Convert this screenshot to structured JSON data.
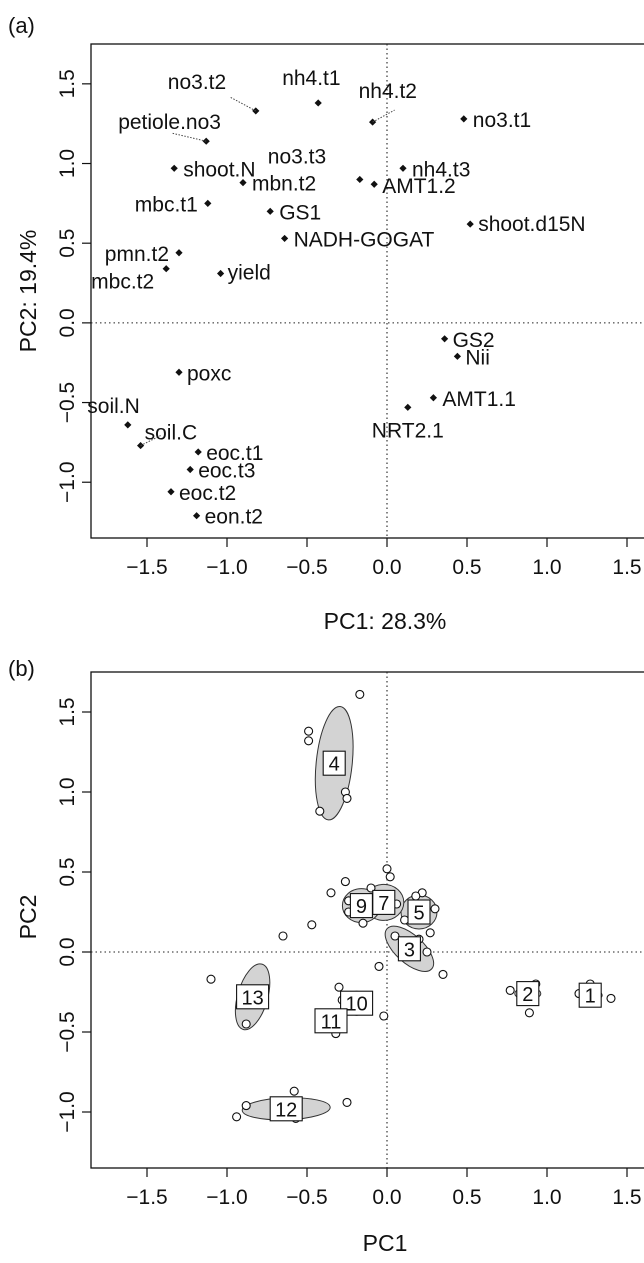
{
  "panels": [
    {
      "tag": "(a)",
      "xlabel": "PC1: 28.3%",
      "ylabel": "PC2: 19.4%"
    },
    {
      "tag": "(b)",
      "xlabel": "PC1",
      "ylabel": "PC2"
    }
  ],
  "chart_data": [
    {
      "type": "scatter",
      "title": "",
      "xlabel": "PC1: 28.3%",
      "ylabel": "PC2: 19.4%",
      "xlim": [
        -1.85,
        1.65
      ],
      "ylim": [
        -1.35,
        1.75
      ],
      "xticks": [
        -1.5,
        -1.0,
        -0.5,
        0.0,
        0.5,
        1.0,
        1.5
      ],
      "yticks": [
        -1.0,
        -0.5,
        0.0,
        0.5,
        1.0,
        1.5
      ],
      "xtick_labels": [
        "−1.5",
        "−1.0",
        "−0.5",
        "0.0",
        "0.5",
        "1.0",
        "1.5"
      ],
      "ytick_labels": [
        "−1.0",
        "−0.5",
        "0.0",
        "0.5",
        "1.0",
        "1.5"
      ],
      "reference_lines": {
        "x": 0,
        "y": 0,
        "style": "dotted"
      },
      "grid": false,
      "points": [
        {
          "label": "no3.t2",
          "x": -0.82,
          "y": 1.33
        },
        {
          "label": "nh4.t1",
          "x": -0.43,
          "y": 1.38
        },
        {
          "label": "nh4.t2",
          "x": -0.09,
          "y": 1.26
        },
        {
          "label": "no3.t1",
          "x": 0.48,
          "y": 1.28
        },
        {
          "label": "petiole.no3",
          "x": -1.13,
          "y": 1.14
        },
        {
          "label": "shoot.N",
          "x": -1.33,
          "y": 0.97
        },
        {
          "label": "no3.t3",
          "x": -0.17,
          "y": 0.9
        },
        {
          "label": "nh4.t3",
          "x": 0.1,
          "y": 0.97
        },
        {
          "label": "AMT1.2",
          "x": -0.08,
          "y": 0.87
        },
        {
          "label": "mbn.t2",
          "x": -0.9,
          "y": 0.88
        },
        {
          "label": "mbc.t1",
          "x": -1.12,
          "y": 0.75
        },
        {
          "label": "GS1",
          "x": -0.73,
          "y": 0.7
        },
        {
          "label": "shoot.d15N",
          "x": 0.52,
          "y": 0.62
        },
        {
          "label": "NADH-GOGAT",
          "x": -0.64,
          "y": 0.53
        },
        {
          "label": "pmn.t2",
          "x": -1.3,
          "y": 0.44
        },
        {
          "label": "mbc.t2",
          "x": -1.38,
          "y": 0.34
        },
        {
          "label": "yield",
          "x": -1.04,
          "y": 0.31
        },
        {
          "label": "GS2",
          "x": 0.36,
          "y": -0.1
        },
        {
          "label": "Nii",
          "x": 0.44,
          "y": -0.21
        },
        {
          "label": "poxc",
          "x": -1.3,
          "y": -0.31
        },
        {
          "label": "AMT1.1",
          "x": 0.29,
          "y": -0.47
        },
        {
          "label": "NRT2.1",
          "x": 0.13,
          "y": -0.53
        },
        {
          "label": "soil.N",
          "x": -1.62,
          "y": -0.64
        },
        {
          "label": "soil.C",
          "x": -1.54,
          "y": -0.77
        },
        {
          "label": "eoc.t1",
          "x": -1.18,
          "y": -0.81
        },
        {
          "label": "eoc.t3",
          "x": -1.23,
          "y": -0.92
        },
        {
          "label": "eoc.t2",
          "x": -1.35,
          "y": -1.06
        },
        {
          "label": "eon.t2",
          "x": -1.19,
          "y": -1.21
        }
      ]
    },
    {
      "type": "scatter",
      "title": "",
      "xlabel": "PC1",
      "ylabel": "PC2",
      "xlim": [
        -1.85,
        1.65
      ],
      "ylim": [
        -1.35,
        1.75
      ],
      "xticks": [
        -1.5,
        -1.0,
        -0.5,
        0.0,
        0.5,
        1.0,
        1.5
      ],
      "yticks": [
        -1.0,
        -0.5,
        0.0,
        0.5,
        1.0,
        1.5
      ],
      "xtick_labels": [
        "−1.5",
        "−1.0",
        "−0.5",
        "0.0",
        "0.5",
        "1.0",
        "1.5"
      ],
      "ytick_labels": [
        "−1.0",
        "−0.5",
        "0.0",
        "0.5",
        "1.0",
        "1.5"
      ],
      "reference_lines": {
        "x": 0,
        "y": 0,
        "style": "dotted"
      },
      "grid": false,
      "groups": [
        {
          "label": "1",
          "center": [
            1.27,
            -0.27
          ],
          "points": [
            [
              1.27,
              -0.2
            ],
            [
              1.2,
              -0.26
            ],
            [
              1.4,
              -0.29
            ]
          ]
        },
        {
          "label": "2",
          "center": [
            0.88,
            -0.26
          ],
          "points": [
            [
              0.77,
              -0.24
            ],
            [
              0.93,
              -0.2
            ],
            [
              0.89,
              -0.38
            ]
          ]
        },
        {
          "label": "3",
          "center": [
            0.14,
            0.02
          ],
          "points": [
            [
              0.05,
              0.1
            ],
            [
              0.2,
              0.08
            ],
            [
              0.35,
              -0.14
            ],
            [
              0.25,
              0.0
            ]
          ]
        },
        {
          "label": "4",
          "center": [
            -0.33,
            1.18
          ],
          "points": [
            [
              -0.49,
              1.38
            ],
            [
              -0.49,
              1.32
            ],
            [
              -0.42,
              0.88
            ],
            [
              -0.26,
              1.0
            ],
            [
              -0.25,
              0.96
            ],
            [
              -0.17,
              1.61
            ]
          ]
        },
        {
          "label": "5",
          "center": [
            0.2,
            0.25
          ],
          "points": [
            [
              0.22,
              0.37
            ],
            [
              0.3,
              0.27
            ],
            [
              0.27,
              0.12
            ],
            [
              0.18,
              0.22
            ]
          ]
        },
        {
          "label": "7",
          "center": [
            -0.02,
            0.31
          ],
          "points": [
            [
              0.0,
              0.52
            ],
            [
              0.02,
              0.47
            ],
            [
              -0.1,
              0.4
            ],
            [
              0.06,
              0.3
            ]
          ]
        },
        {
          "label": "9",
          "center": [
            -0.16,
            0.29
          ],
          "points": [
            [
              -0.26,
              0.44
            ],
            [
              -0.35,
              0.37
            ],
            [
              -0.24,
              0.25
            ],
            [
              -0.15,
              0.18
            ]
          ]
        },
        {
          "label": "10",
          "center": [
            -0.19,
            -0.32
          ],
          "points": [
            [
              -0.3,
              -0.22
            ],
            [
              -0.28,
              -0.3
            ],
            [
              -0.16,
              -0.36
            ],
            [
              -0.02,
              -0.4
            ]
          ]
        },
        {
          "label": "11",
          "center": [
            -0.35,
            -0.43
          ],
          "points": [
            [
              -0.4,
              -0.47
            ],
            [
              -0.32,
              -0.51
            ],
            [
              -0.3,
              -0.46
            ]
          ]
        },
        {
          "label": "12",
          "center": [
            -0.63,
            -0.98
          ],
          "points": [
            [
              -0.88,
              -0.96
            ],
            [
              -0.94,
              -1.03
            ],
            [
              -0.58,
              -0.87
            ],
            [
              -0.57,
              -1.04
            ],
            [
              -0.25,
              -0.94
            ]
          ]
        },
        {
          "label": "13",
          "center": [
            -0.84,
            -0.28
          ],
          "points": [
            [
              -1.1,
              -0.17
            ],
            [
              -0.88,
              -0.45
            ],
            [
              -0.65,
              0.1
            ]
          ]
        },
        {
          "label": "",
          "center": [
            0.07,
            0.2
          ],
          "points": [
            [
              -0.47,
              0.17
            ],
            [
              -0.05,
              -0.09
            ],
            [
              -0.24,
              0.32
            ],
            [
              0.11,
              0.2
            ],
            [
              0.18,
              0.35
            ]
          ]
        }
      ]
    }
  ]
}
